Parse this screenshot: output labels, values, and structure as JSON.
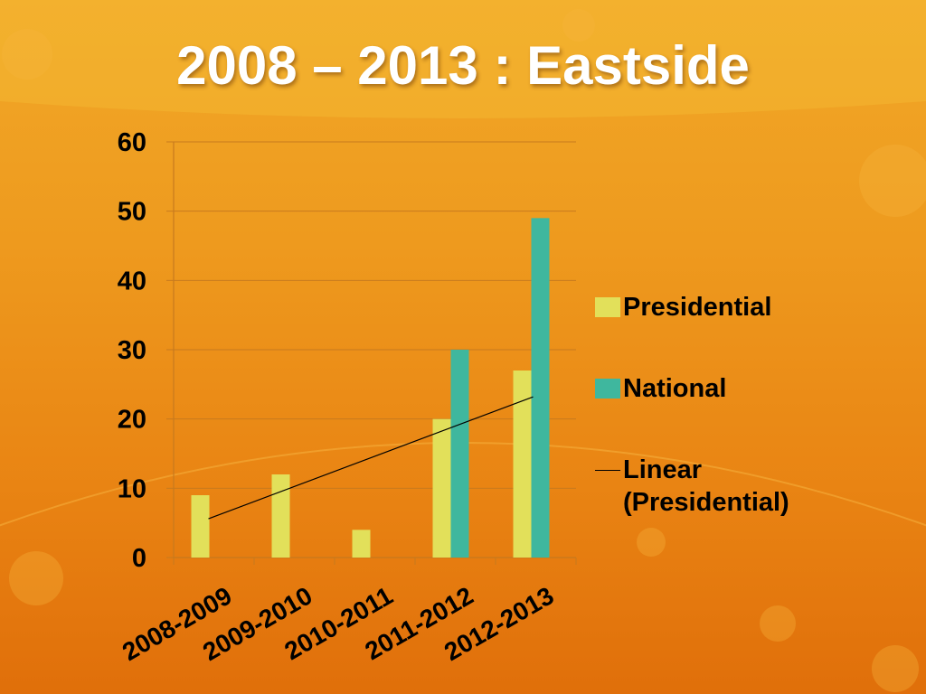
{
  "title": "2008 – 2013 : Eastside",
  "colors": {
    "presidential": "#e2e05a",
    "national": "#3fb79e",
    "trendline": "#000000",
    "gridline": "#c77a1e"
  },
  "legend": {
    "presidential": "Presidential",
    "national": "National",
    "linear": "Linear\n(Presidential)"
  },
  "chart_data": {
    "type": "bar",
    "title": "2008 – 2013 : Eastside",
    "categories": [
      "2008-2009",
      "2009-2010",
      "2010-2011",
      "2011-2012",
      "2012-2013"
    ],
    "series": [
      {
        "name": "Presidential",
        "values": [
          9,
          12,
          4,
          20,
          27
        ]
      },
      {
        "name": "National",
        "values": [
          0,
          0,
          0,
          30,
          49
        ]
      }
    ],
    "trendline": {
      "name": "Linear (Presidential)",
      "of": "Presidential",
      "type": "linear",
      "start": 5.6,
      "end": 23.2
    },
    "ylim": [
      0,
      60
    ],
    "yticks": [
      0,
      10,
      20,
      30,
      40,
      50,
      60
    ],
    "xlabel": "",
    "ylabel": "",
    "grid": true,
    "legend_position": "right"
  }
}
